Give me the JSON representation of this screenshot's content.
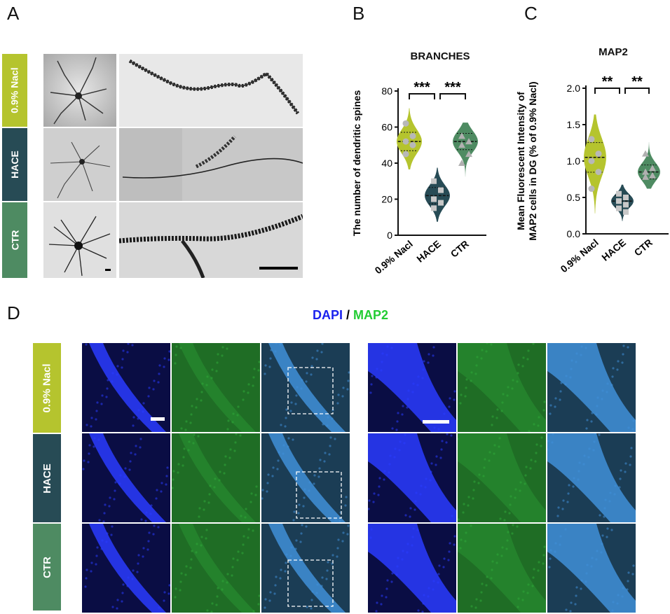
{
  "panels": {
    "a": "A",
    "b": "B",
    "c": "C",
    "d": "D"
  },
  "groups": [
    "0.9% Nacl",
    "HACE",
    "CTR"
  ],
  "colors": {
    "nacl": "#b5c42e",
    "hace": "#274b55",
    "ctr": "#4e8b62",
    "dapi": "#1a22ee",
    "map2": "#22cc33"
  },
  "panel_d_title": {
    "dapi": "DAPI",
    "sep": " / ",
    "map2": "MAP2"
  },
  "chart_data": [
    {
      "type": "violin",
      "title": "BRANCHES",
      "xlabel": "",
      "ylabel": "The number of dendritic spines",
      "categories": [
        "0.9% Nacl",
        "HACE",
        "CTR"
      ],
      "ylim": [
        0,
        80
      ],
      "yticks": [
        0,
        20,
        40,
        60,
        80
      ],
      "medians": [
        52,
        22,
        52
      ],
      "points": [
        [
          62,
          55,
          52,
          50,
          45
        ],
        [
          30,
          25,
          20,
          18,
          15
        ],
        [
          55,
          52,
          50,
          45,
          40
        ]
      ],
      "significance": [
        {
          "from": 0,
          "to": 1,
          "label": "***"
        },
        {
          "from": 1,
          "to": 2,
          "label": "***"
        }
      ]
    },
    {
      "type": "violin",
      "title": "MAP2",
      "xlabel": "",
      "ylabel": "Mean Fluorescent Intensity of MAP2 cells in DG (% of 0.9% Nacl)",
      "categories": [
        "0.9% Nacl",
        "HACE",
        "CTR"
      ],
      "ylim": [
        0,
        2.0
      ],
      "yticks": [
        "0.0",
        "0.5",
        "1.0",
        "1.5",
        "2.0"
      ],
      "medians": [
        1.05,
        0.45,
        0.85
      ],
      "points": [
        [
          1.3,
          1.1,
          1.0,
          0.85,
          0.62
        ],
        [
          0.55,
          0.5,
          0.45,
          0.4,
          0.35,
          0.3
        ],
        [
          1.1,
          0.9,
          0.85,
          0.8,
          0.78
        ]
      ],
      "significance": [
        {
          "from": 0,
          "to": 1,
          "label": "**"
        },
        {
          "from": 1,
          "to": 2,
          "label": "**"
        }
      ]
    }
  ]
}
